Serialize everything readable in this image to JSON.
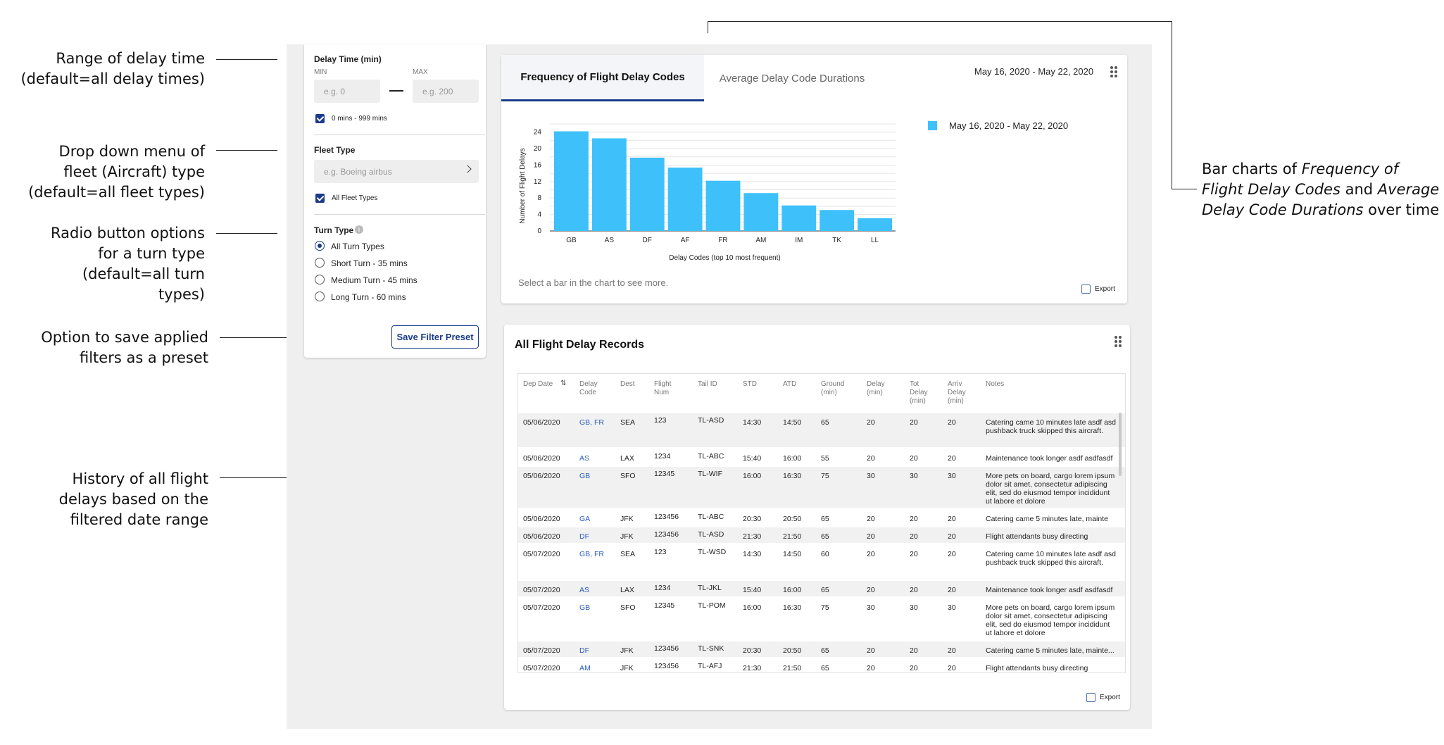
{
  "annotations": {
    "delay_range": [
      "Range of delay time",
      "(default=all delay times)"
    ],
    "fleet_dropdown": [
      "Drop down menu of",
      "fleet (Aircraft) type",
      "(default=all fleet types)"
    ],
    "turn_radio": [
      "Radio button options",
      "for a turn type",
      "(default=all turn",
      "types)"
    ],
    "save_preset": [
      "Option to save applied",
      "filters as a preset"
    ],
    "history": [
      "History of all flight",
      "delays based on the",
      "filtered date range"
    ],
    "bar_charts": {
      "line1_plain": "Bar charts of ",
      "line1_italic": "Frequency of",
      "line2_italic": "Flight Delay Codes",
      "line2_plain": " and ",
      "line2_italic2": "Average",
      "line3_italic": "Delay Code Durations",
      "line3_plain": " over time"
    }
  },
  "filters": {
    "delay_time_label": "Delay Time (min)",
    "min_label": "MIN",
    "max_label": "MAX",
    "min_placeholder": "e.g. 0",
    "max_placeholder": "e.g. 200",
    "delay_checkbox": "0 mins - 999 mins",
    "fleet_label": "Fleet Type",
    "fleet_placeholder": "e.g. Boeing airbus",
    "fleet_checkbox": "All Fleet Types",
    "turn_label": "Turn Type",
    "turn_options": [
      "All Turn Types",
      "Short Turn - 35 mins",
      "Medium Turn - 45 mins",
      "Long Turn - 60 mins"
    ],
    "save_button": "Save Filter Preset"
  },
  "chart_card": {
    "tabs": [
      "Frequency of Flight Delay Codes",
      "Average Delay Code Durations"
    ],
    "date_range": "May 16, 2020 - May 22, 2020",
    "hint": "Select a bar in the chart to see more.",
    "export": "Export",
    "bar_color": "#3ec1fb"
  },
  "chart_data": {
    "type": "bar",
    "categories": [
      "GB",
      "AS",
      "DF",
      "AF",
      "FR",
      "AM",
      "IM",
      "TK",
      "LL"
    ],
    "series": [
      {
        "name": "May 16, 2020 - May 22, 2020",
        "values": [
          24.2,
          22.5,
          17.8,
          15.4,
          12.2,
          9.2,
          6.2,
          5.1,
          3.1
        ]
      }
    ],
    "ylabel": "Number of Flight Delays",
    "xlabel": "Delay Codes (top 10 most frequent)",
    "ylim": [
      0,
      26
    ],
    "yticks": [
      0,
      4,
      8,
      12,
      16,
      20,
      24
    ],
    "grid": true,
    "legend": "right"
  },
  "records": {
    "title": "All Flight Delay Records",
    "export": "Export",
    "columns": [
      {
        "id": "dep",
        "label": "Dep Date",
        "lines": [
          "Dep Date"
        ]
      },
      {
        "id": "code",
        "label": "Delay Code",
        "lines": [
          "Delay",
          "Code"
        ]
      },
      {
        "id": "dest",
        "label": "Dest",
        "lines": [
          "Dest"
        ]
      },
      {
        "id": "num",
        "label": "Flight Num",
        "lines": [
          "Flight",
          "Num"
        ]
      },
      {
        "id": "tail",
        "label": "Tail ID",
        "lines": [
          "Tail ID"
        ]
      },
      {
        "id": "std",
        "label": "STD",
        "lines": [
          "STD"
        ]
      },
      {
        "id": "atd",
        "label": "ATD",
        "lines": [
          "ATD"
        ]
      },
      {
        "id": "ground",
        "label": "Ground (min)",
        "lines": [
          "Ground",
          "(min)"
        ]
      },
      {
        "id": "delay",
        "label": "Delay (min)",
        "lines": [
          "Delay",
          "(min)"
        ]
      },
      {
        "id": "tot",
        "label": "Tot Delay (min)",
        "lines": [
          "Tot",
          "Delay",
          "(min)"
        ]
      },
      {
        "id": "arriv",
        "label": "Arriv Delay (min)",
        "lines": [
          "Arriv",
          "Delay",
          "(min)"
        ]
      },
      {
        "id": "notes",
        "label": "Notes",
        "lines": [
          "Notes"
        ]
      }
    ],
    "rows": [
      {
        "dep": "05/06/2020",
        "code": "GB, FR",
        "dest": "SEA",
        "num": "123",
        "tail": "TL-ASD",
        "std": "14:30",
        "atd": "14:50",
        "ground": "65",
        "delay": "20",
        "tot": "20",
        "arriv": "20",
        "notes": [
          "Catering came 10 minutes late asdf asd",
          "pushback truck skipped this aircraft."
        ]
      },
      {
        "dep": "05/06/2020",
        "code": "AS",
        "dest": "LAX",
        "num": "1234",
        "tail": "TL-ABC",
        "std": "15:40",
        "atd": "16:00",
        "ground": "55",
        "delay": "20",
        "tot": "20",
        "arriv": "20",
        "notes": [
          "Maintenance took longer asdf asdfasdf"
        ]
      },
      {
        "dep": "05/06/2020",
        "code": "GB",
        "dest": "SFO",
        "num": "12345",
        "tail": "TL-WIF",
        "std": "16:00",
        "atd": "16:30",
        "ground": "75",
        "delay": "30",
        "tot": "30",
        "arriv": "30",
        "notes": [
          "More pets on board, cargo lorem ipsum",
          "dolor sit amet, consectetur adipiscing",
          "elit, sed do eiusmod tempor incididunt",
          "ut labore et dolore"
        ]
      },
      {
        "dep": "05/06/2020",
        "code": "GA",
        "dest": "JFK",
        "num": "123456",
        "tail": "TL-ABC",
        "std": "20:30",
        "atd": "20:50",
        "ground": "65",
        "delay": "20",
        "tot": "20",
        "arriv": "20",
        "notes": [
          "Catering came 5 minutes late, mainte"
        ]
      },
      {
        "dep": "05/06/2020",
        "code": "DF",
        "dest": "JFK",
        "num": "123456",
        "tail": "TL-ASD",
        "std": "21:30",
        "atd": "21:50",
        "ground": "65",
        "delay": "20",
        "tot": "20",
        "arriv": "20",
        "notes": [
          "Flight attendants busy directing"
        ]
      },
      {
        "dep": "05/07/2020",
        "code": "GB, FR",
        "dest": "SEA",
        "num": "123",
        "tail": "TL-WSD",
        "std": "14:30",
        "atd": "14:50",
        "ground": "60",
        "delay": "20",
        "tot": "20",
        "arriv": "20",
        "notes": [
          "Catering came 10 minutes late asdf asd",
          "pushback truck skipped this aircraft."
        ]
      },
      {
        "dep": "05/07/2020",
        "code": "AS",
        "dest": "LAX",
        "num": "1234",
        "tail": "TL-JKL",
        "std": "15:40",
        "atd": "16:00",
        "ground": "65",
        "delay": "20",
        "tot": "20",
        "arriv": "20",
        "notes": [
          "Maintenance took longer asdf asdfasdf"
        ]
      },
      {
        "dep": "05/07/2020",
        "code": "GB",
        "dest": "SFO",
        "num": "12345",
        "tail": "TL-POM",
        "std": "16:00",
        "atd": "16:30",
        "ground": "75",
        "delay": "30",
        "tot": "30",
        "arriv": "30",
        "notes": [
          "More pets on board, cargo lorem ipsum",
          "dolor sit amet, consectetur adipiscing",
          "elit, sed do eiusmod tempor incididunt",
          "ut labore et dolore"
        ]
      },
      {
        "dep": "05/07/2020",
        "code": "DF",
        "dest": "JFK",
        "num": "123456",
        "tail": "TL-SNK",
        "std": "20:30",
        "atd": "20:50",
        "ground": "65",
        "delay": "20",
        "tot": "20",
        "arriv": "20",
        "notes": [
          "Catering came 5 minutes late, mainte..."
        ]
      },
      {
        "dep": "05/07/2020",
        "code": "AM",
        "dest": "JFK",
        "num": "123456",
        "tail": "TL-AFJ",
        "std": "21:30",
        "atd": "21:50",
        "ground": "65",
        "delay": "20",
        "tot": "20",
        "arriv": "20",
        "notes": [
          "Flight attendants busy directing"
        ]
      }
    ]
  }
}
